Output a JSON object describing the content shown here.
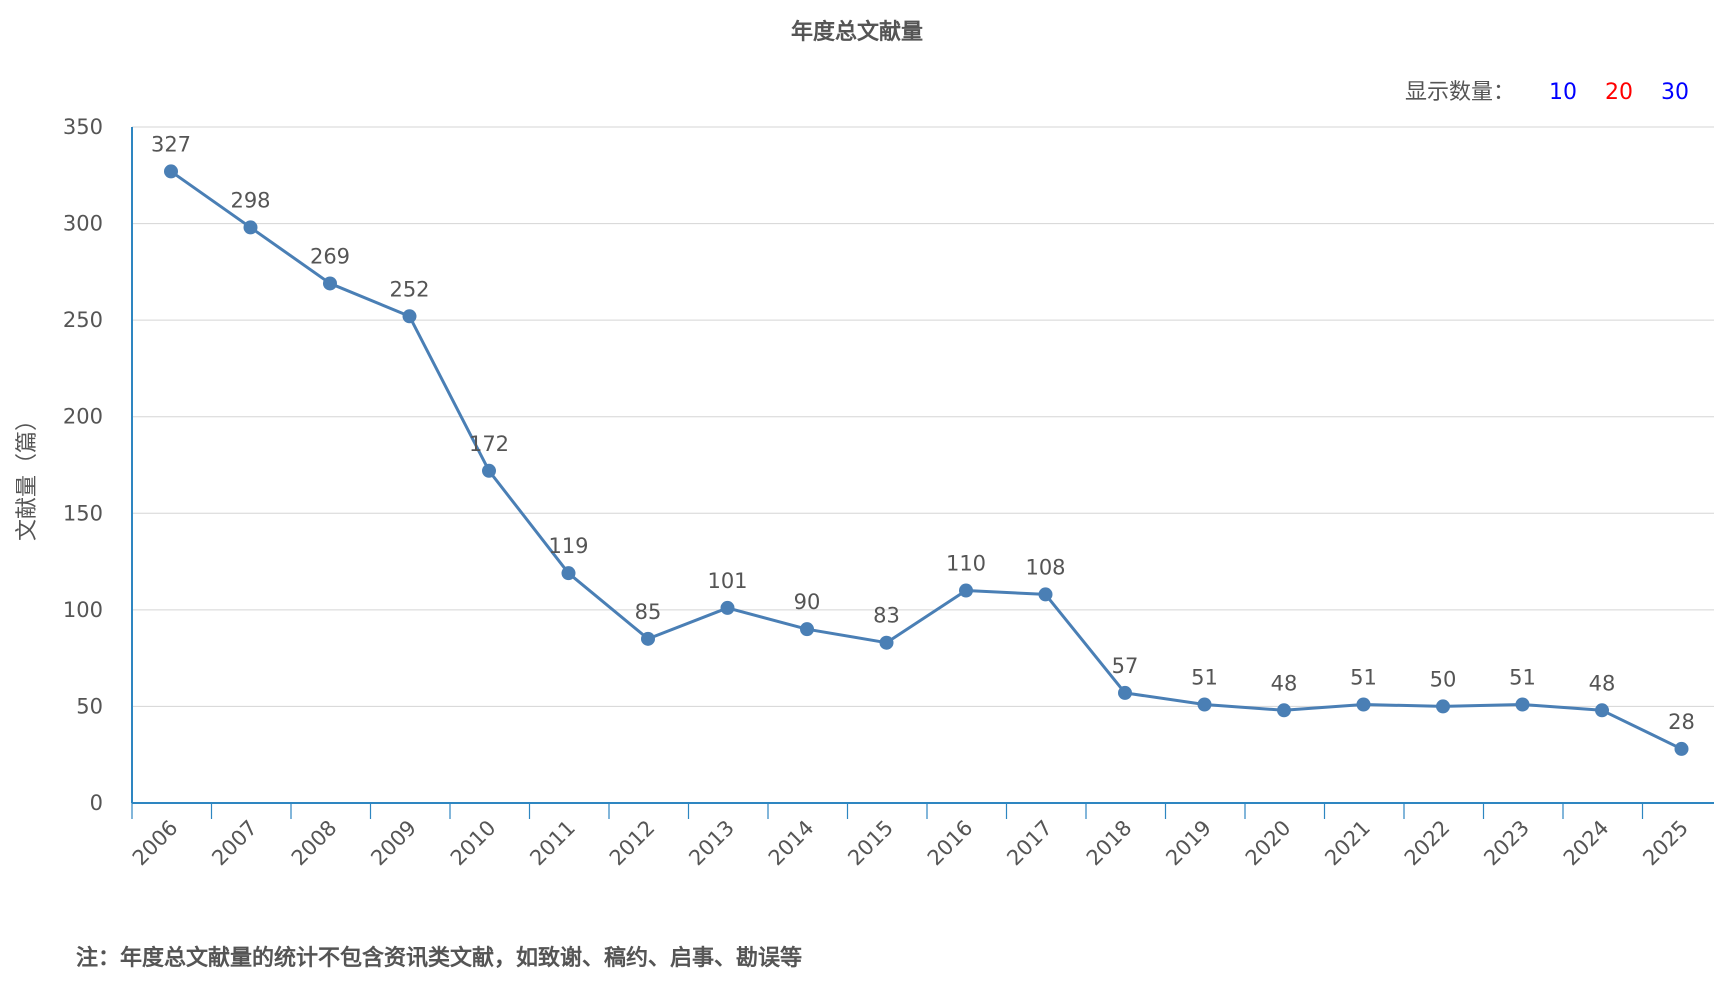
{
  "title": "年度总文献量",
  "count_selector": {
    "label": "显示数量：",
    "options": [
      {
        "label": "10",
        "color": "#0000ff"
      },
      {
        "label": "20",
        "color": "#ff0000"
      },
      {
        "label": "30",
        "color": "#0000ff"
      }
    ]
  },
  "footnote": "注：年度总文献量的统计不包含资讯类文献，如致谢、稿约、启事、勘误等",
  "colors": {
    "series": "#4a7fb5",
    "axis": "#2e86c1",
    "grid": "#d5d5d5",
    "text": "#555555"
  },
  "chart_data": {
    "type": "line",
    "title": "年度总文献量",
    "xlabel": "",
    "ylabel": "文献量（篇）",
    "categories": [
      "2006",
      "2007",
      "2008",
      "2009",
      "2010",
      "2011",
      "2012",
      "2013",
      "2014",
      "2015",
      "2016",
      "2017",
      "2018",
      "2019",
      "2020",
      "2021",
      "2022",
      "2023",
      "2024",
      "2025"
    ],
    "values": [
      327,
      298,
      269,
      252,
      172,
      119,
      85,
      101,
      90,
      83,
      110,
      108,
      57,
      51,
      48,
      51,
      50,
      51,
      48,
      28
    ],
    "ylim": [
      0,
      350
    ],
    "yticks": [
      0,
      50,
      100,
      150,
      200,
      250,
      300,
      350
    ],
    "grid": true,
    "data_labels": true,
    "legend": "none"
  }
}
